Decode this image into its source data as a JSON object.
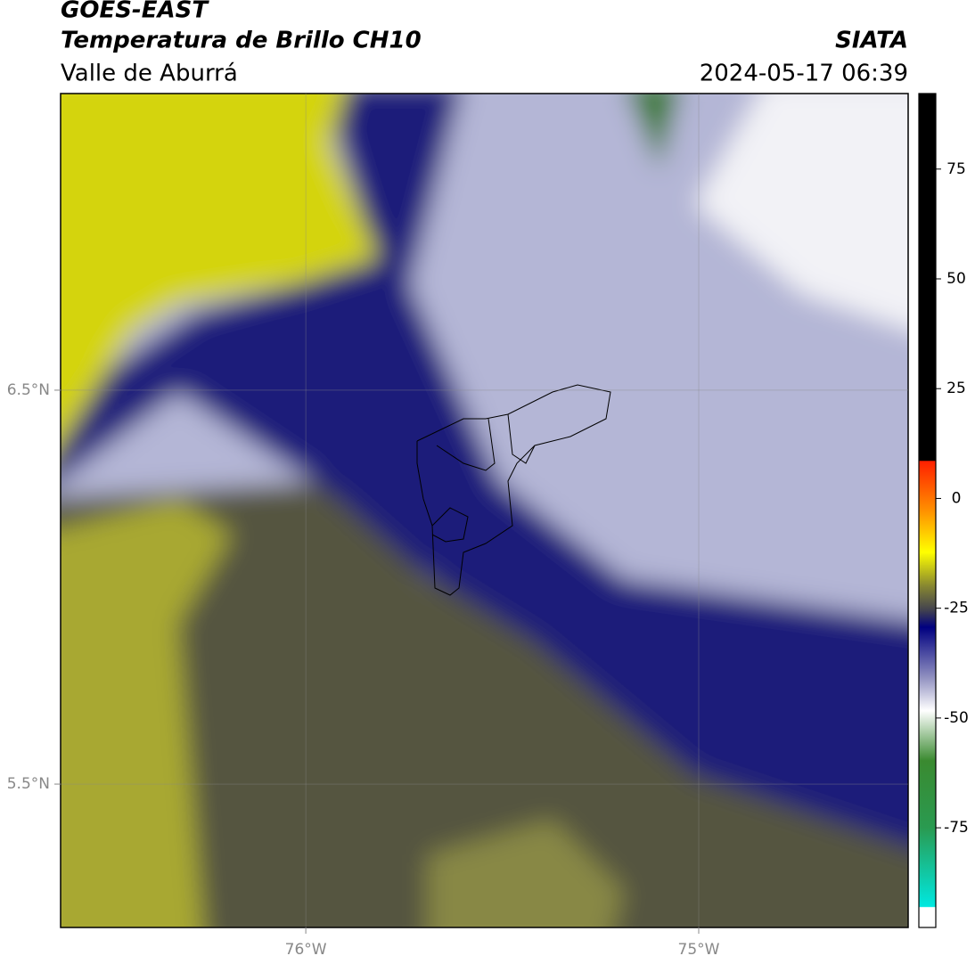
{
  "header": {
    "title": "GOES-EAST",
    "subtitle": "Temperatura de Brillo CH10",
    "region": "Valle de Aburrá",
    "organization": "SIATA",
    "datetime": "2024-05-17 06:39"
  },
  "map": {
    "lon_range": [
      -76.624,
      -74.467
    ],
    "lat_range": [
      5.136,
      7.253
    ],
    "lon_ticks": [
      {
        "value": -76,
        "label": "76°W"
      },
      {
        "value": -75,
        "label": "75°W"
      }
    ],
    "lat_ticks": [
      {
        "value": 6.5,
        "label": "6.5°N"
      },
      {
        "value": 5.5,
        "label": "5.5°N"
      }
    ]
  },
  "colorbar": {
    "range": [
      -97.7,
      92.2
    ],
    "ticks": [
      75,
      50,
      25,
      0,
      -25,
      -50,
      -75
    ]
  }
}
